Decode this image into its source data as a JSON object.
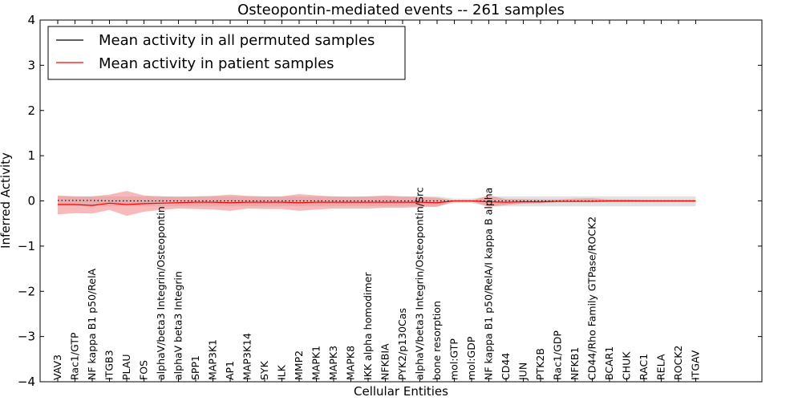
{
  "chart_data": {
    "type": "line",
    "title": "Osteopontin-mediated events -- 261 samples",
    "xlabel": "Cellular Entities",
    "ylabel": "Inferred Activity",
    "ylim": [
      -4,
      4
    ],
    "yticks": [
      -4,
      -3,
      -2,
      -1,
      0,
      1,
      2,
      3,
      4
    ],
    "ytick_labels": [
      "−4",
      "−3",
      "−2",
      "−1",
      "0",
      "1",
      "2",
      "3",
      "4"
    ],
    "legend_position": "top-left",
    "categories": [
      "VAV3",
      "Rac1/GTP",
      "NF kappa B1 p50/RelA",
      "ITGB3",
      "PLAU",
      "FOS",
      "alphaV/beta3 Integrin/Osteopontin",
      "alphaV beta3 Integrin",
      "SPP1",
      "MAP3K1",
      "AP1",
      "MAP3K14",
      "SYK",
      "ILK",
      "MMP2",
      "MAPK1",
      "MAPK3",
      "MAPK8",
      "IKK alpha homodimer",
      "NFKBIA",
      "PYK2/p130Cas",
      "alphaV/beta3 Integrin/Osteopontin/Src",
      "bone resorption",
      "mol:GTP",
      "mol:GDP",
      "NF kappa B1 p50/RelA/I kappa B alpha",
      "CD44",
      "JUN",
      "PTK2B",
      "Rac1/GDP",
      "NFKB1",
      "CD44/Rho Family GTPase/ROCK2",
      "BCAR1",
      "CHUK",
      "RAC1",
      "RELA",
      "ROCK2",
      "ITGAV"
    ],
    "series": [
      {
        "name": "Mean activity in all permuted samples",
        "color": "#000000",
        "style": "dotted",
        "values": [
          0.01,
          0.01,
          0.01,
          0.0,
          0.0,
          0.0,
          0.0,
          0.0,
          0.0,
          0.0,
          0.0,
          0.0,
          0.0,
          0.0,
          0.0,
          0.0,
          0.0,
          0.0,
          0.0,
          0.0,
          0.0,
          0.0,
          0.0,
          0.0,
          0.0,
          0.0,
          0.0,
          0.0,
          0.0,
          0.0,
          0.0,
          0.0,
          0.0,
          0.0,
          0.0,
          0.0,
          0.0,
          0.0
        ],
        "band_low": [
          -0.12,
          -0.12,
          -0.12,
          -0.12,
          -0.12,
          -0.12,
          -0.12,
          -0.12,
          -0.12,
          -0.12,
          -0.12,
          -0.12,
          -0.12,
          -0.12,
          -0.12,
          -0.12,
          -0.12,
          -0.12,
          -0.12,
          -0.12,
          -0.12,
          -0.12,
          -0.12,
          -0.05,
          -0.05,
          -0.12,
          -0.12,
          -0.12,
          -0.12,
          -0.12,
          -0.12,
          -0.12,
          -0.12,
          -0.12,
          -0.12,
          -0.12,
          -0.12,
          -0.12
        ],
        "band_high": [
          0.1,
          0.1,
          0.1,
          0.1,
          0.1,
          0.1,
          0.1,
          0.1,
          0.1,
          0.1,
          0.1,
          0.1,
          0.1,
          0.1,
          0.1,
          0.1,
          0.1,
          0.1,
          0.1,
          0.1,
          0.1,
          0.1,
          0.1,
          0.05,
          0.05,
          0.1,
          0.1,
          0.1,
          0.1,
          0.1,
          0.1,
          0.1,
          0.1,
          0.1,
          0.1,
          0.1,
          0.1,
          0.1
        ]
      },
      {
        "name": "Mean activity in patient samples",
        "color": "#ff0000",
        "style": "solid",
        "values": [
          -0.08,
          -0.08,
          -0.1,
          -0.05,
          -0.08,
          -0.06,
          -0.05,
          -0.04,
          -0.03,
          -0.03,
          -0.04,
          -0.03,
          -0.03,
          -0.03,
          -0.04,
          -0.03,
          -0.03,
          -0.03,
          -0.03,
          -0.03,
          -0.03,
          -0.03,
          -0.04,
          0.0,
          0.0,
          -0.02,
          -0.03,
          -0.02,
          -0.02,
          -0.01,
          -0.01,
          -0.01,
          0.0,
          0.0,
          0.0,
          0.0,
          0.0,
          0.0
        ],
        "band_low": [
          -0.3,
          -0.27,
          -0.28,
          -0.2,
          -0.33,
          -0.24,
          -0.2,
          -0.17,
          -0.18,
          -0.19,
          -0.22,
          -0.17,
          -0.18,
          -0.18,
          -0.22,
          -0.19,
          -0.17,
          -0.17,
          -0.17,
          -0.15,
          -0.15,
          -0.14,
          -0.13,
          -0.01,
          -0.01,
          -0.13,
          -0.09,
          -0.06,
          -0.05,
          -0.03,
          -0.03,
          -0.03,
          -0.02,
          -0.02,
          -0.02,
          -0.02,
          -0.02,
          -0.02
        ],
        "band_high": [
          0.12,
          0.1,
          0.1,
          0.14,
          0.22,
          0.12,
          0.1,
          0.09,
          0.1,
          0.11,
          0.14,
          0.11,
          0.1,
          0.1,
          0.15,
          0.12,
          0.1,
          0.09,
          0.1,
          0.12,
          0.1,
          0.09,
          0.07,
          0.01,
          0.01,
          0.12,
          0.04,
          0.04,
          0.03,
          0.03,
          0.05,
          0.06,
          0.03,
          0.03,
          0.02,
          0.02,
          0.02,
          0.02
        ]
      }
    ]
  }
}
